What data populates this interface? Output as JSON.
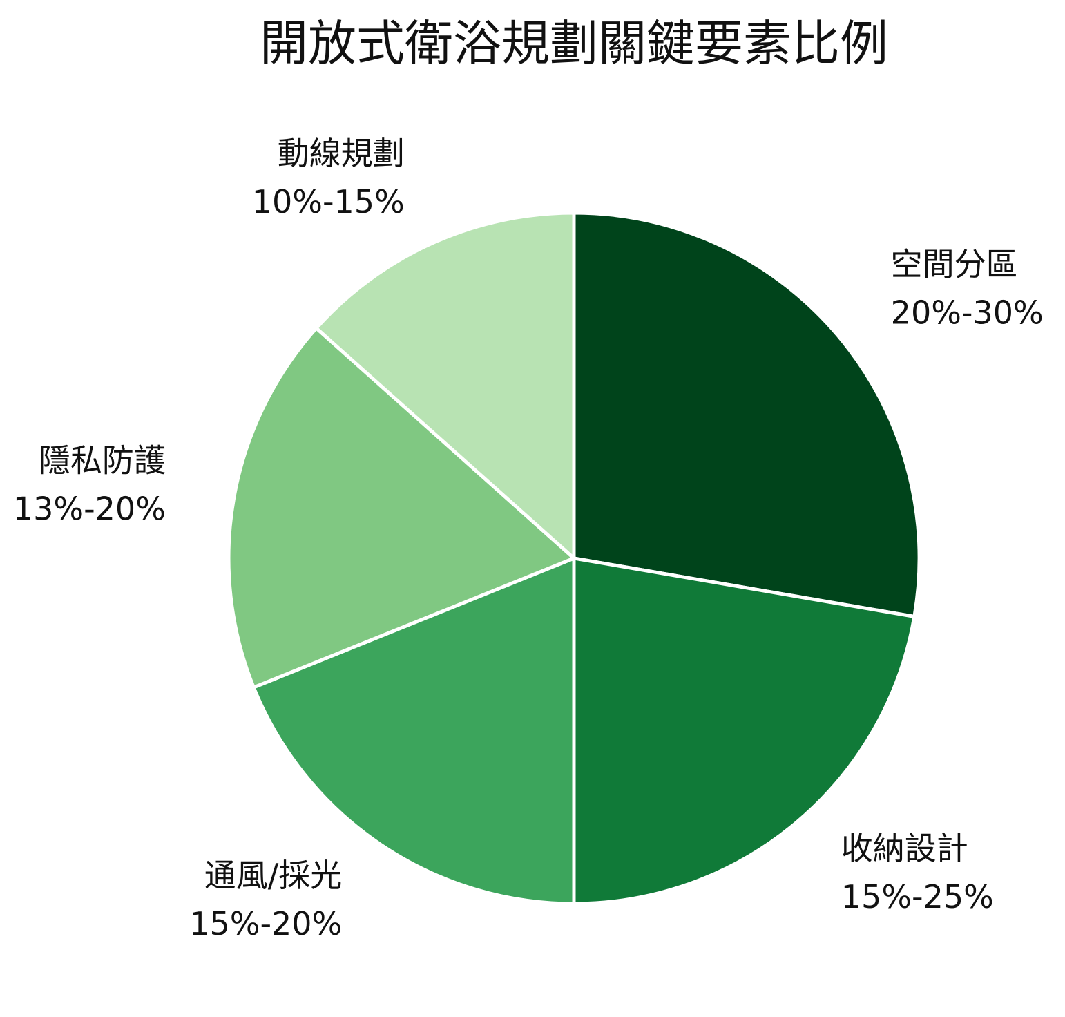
{
  "chart_data": {
    "type": "pie",
    "title": "開放式衛浴規劃關鍵要素比例",
    "categories": [
      "空間分區",
      "收納設計",
      "通風/採光",
      "隱私防護",
      "動線規劃"
    ],
    "ranges": [
      "20%-30%",
      "15%-25%",
      "15%-20%",
      "13%-20%",
      "10%-15%"
    ],
    "values": [
      27.7,
      22.3,
      18.9,
      17.7,
      13.4
    ],
    "colors": [
      "#00441b",
      "#107a38",
      "#3ca55c",
      "#80c882",
      "#b8e3b3"
    ]
  }
}
